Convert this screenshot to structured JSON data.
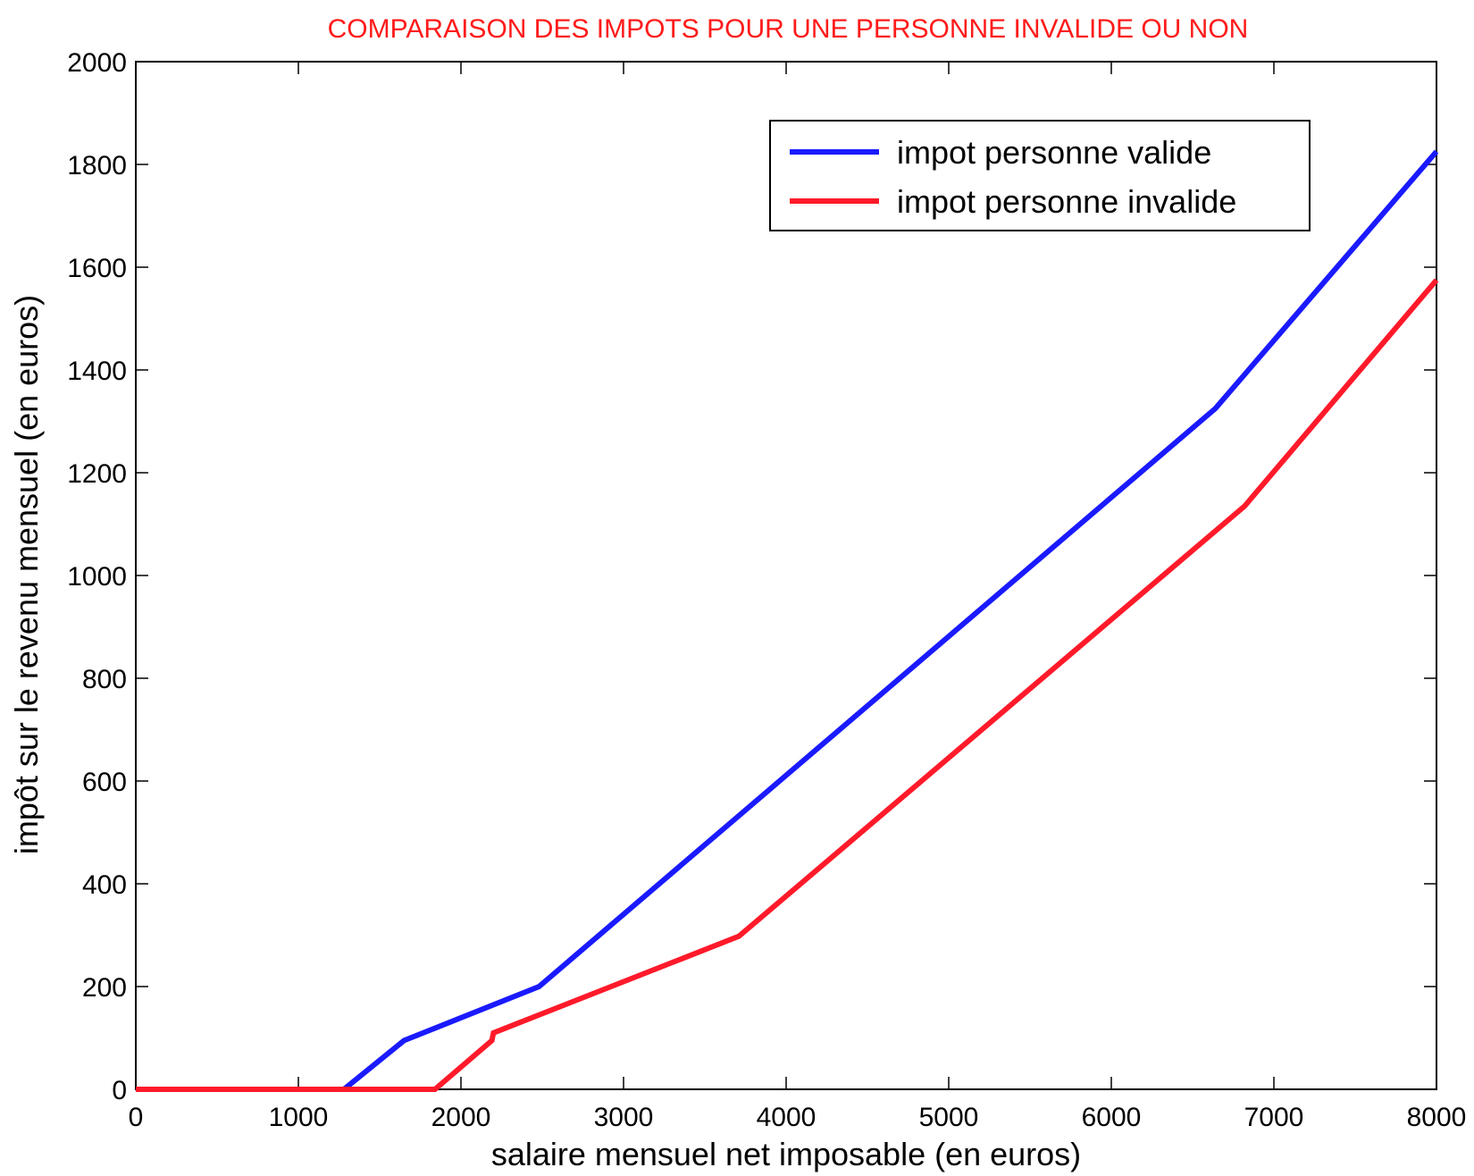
{
  "chart_data": {
    "type": "line",
    "title": "COMPARAISON DES IMPOTS POUR UNE PERSONNE INVALIDE OU NON",
    "title_color": "#ff1a1a",
    "xlabel": "salaire mensuel net imposable (en euros)",
    "ylabel": "impôt sur le revenu mensuel (en euros)",
    "xlim": [
      0,
      8000
    ],
    "ylim": [
      0,
      2000
    ],
    "xticks": [
      0,
      1000,
      2000,
      3000,
      4000,
      5000,
      6000,
      7000,
      8000
    ],
    "yticks": [
      0,
      200,
      400,
      600,
      800,
      1000,
      1200,
      1400,
      1600,
      1800,
      2000
    ],
    "grid": false,
    "legend_position": "top-right",
    "series": [
      {
        "name": "impot personne valide",
        "color": "#1a1aff",
        "points": [
          [
            0,
            0
          ],
          [
            1280,
            0
          ],
          [
            1650,
            95
          ],
          [
            2480,
            200
          ],
          [
            6640,
            1325
          ],
          [
            8000,
            1825
          ]
        ]
      },
      {
        "name": "impot personne invalide",
        "color": "#ff1a2a",
        "points": [
          [
            0,
            0
          ],
          [
            1840,
            0
          ],
          [
            2190,
            95
          ],
          [
            2200,
            110
          ],
          [
            3710,
            298
          ],
          [
            6820,
            1135
          ],
          [
            8000,
            1575
          ]
        ]
      }
    ]
  }
}
